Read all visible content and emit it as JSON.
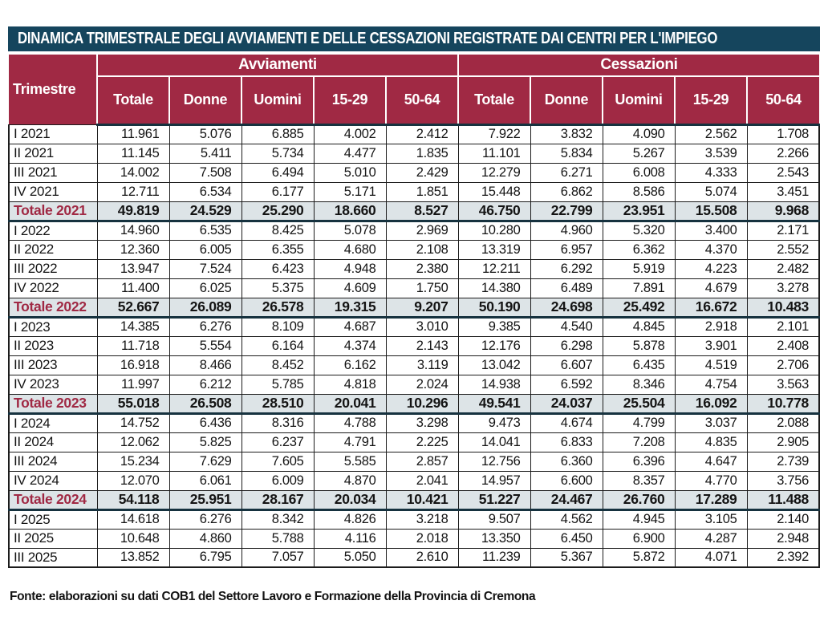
{
  "chart_data": {
    "type": "table",
    "title": "DINAMICA TRIMESTRALE DEGLI AVVIAMENTI E DELLE CESSAZIONI REGISTRATE DAI CENTRI PER L'IMPIEGO",
    "row_header": "Trimestre",
    "column_groups": [
      "Avviamenti",
      "Cessazioni"
    ],
    "sub_columns": [
      "Totale",
      "Donne",
      "Uomini",
      "15-29",
      "50-64"
    ],
    "rows": [
      {
        "label": "I 2021",
        "is_total": false,
        "values": [
          "11.961",
          "5.076",
          "6.885",
          "4.002",
          "2.412",
          "7.922",
          "3.832",
          "4.090",
          "2.562",
          "1.708"
        ]
      },
      {
        "label": "II 2021",
        "is_total": false,
        "values": [
          "11.145",
          "5.411",
          "5.734",
          "4.477",
          "1.835",
          "11.101",
          "5.834",
          "5.267",
          "3.539",
          "2.266"
        ]
      },
      {
        "label": "III 2021",
        "is_total": false,
        "values": [
          "14.002",
          "7.508",
          "6.494",
          "5.010",
          "2.429",
          "12.279",
          "6.271",
          "6.008",
          "4.333",
          "2.543"
        ]
      },
      {
        "label": "IV 2021",
        "is_total": false,
        "values": [
          "12.711",
          "6.534",
          "6.177",
          "5.171",
          "1.851",
          "15.448",
          "6.862",
          "8.586",
          "5.074",
          "3.451"
        ]
      },
      {
        "label": "Totale 2021",
        "is_total": true,
        "values": [
          "49.819",
          "24.529",
          "25.290",
          "18.660",
          "8.527",
          "46.750",
          "22.799",
          "23.951",
          "15.508",
          "9.968"
        ]
      },
      {
        "label": "I 2022",
        "is_total": false,
        "values": [
          "14.960",
          "6.535",
          "8.425",
          "5.078",
          "2.969",
          "10.280",
          "4.960",
          "5.320",
          "3.400",
          "2.171"
        ]
      },
      {
        "label": "II 2022",
        "is_total": false,
        "values": [
          "12.360",
          "6.005",
          "6.355",
          "4.680",
          "2.108",
          "13.319",
          "6.957",
          "6.362",
          "4.370",
          "2.552"
        ]
      },
      {
        "label": "III 2022",
        "is_total": false,
        "values": [
          "13.947",
          "7.524",
          "6.423",
          "4.948",
          "2.380",
          "12.211",
          "6.292",
          "5.919",
          "4.223",
          "2.482"
        ]
      },
      {
        "label": "IV 2022",
        "is_total": false,
        "values": [
          "11.400",
          "6.025",
          "5.375",
          "4.609",
          "1.750",
          "14.380",
          "6.489",
          "7.891",
          "4.679",
          "3.278"
        ]
      },
      {
        "label": "Totale 2022",
        "is_total": true,
        "values": [
          "52.667",
          "26.089",
          "26.578",
          "19.315",
          "9.207",
          "50.190",
          "24.698",
          "25.492",
          "16.672",
          "10.483"
        ]
      },
      {
        "label": "I 2023",
        "is_total": false,
        "values": [
          "14.385",
          "6.276",
          "8.109",
          "4.687",
          "3.010",
          "9.385",
          "4.540",
          "4.845",
          "2.918",
          "2.101"
        ]
      },
      {
        "label": "II 2023",
        "is_total": false,
        "values": [
          "11.718",
          "5.554",
          "6.164",
          "4.374",
          "2.143",
          "12.176",
          "6.298",
          "5.878",
          "3.901",
          "2.408"
        ]
      },
      {
        "label": "III 2023",
        "is_total": false,
        "values": [
          "16.918",
          "8.466",
          "8.452",
          "6.162",
          "3.119",
          "13.042",
          "6.607",
          "6.435",
          "4.519",
          "2.706"
        ]
      },
      {
        "label": "IV 2023",
        "is_total": false,
        "values": [
          "11.997",
          "6.212",
          "5.785",
          "4.818",
          "2.024",
          "14.938",
          "6.592",
          "8.346",
          "4.754",
          "3.563"
        ]
      },
      {
        "label": "Totale 2023",
        "is_total": true,
        "values": [
          "55.018",
          "26.508",
          "28.510",
          "20.041",
          "10.296",
          "49.541",
          "24.037",
          "25.504",
          "16.092",
          "10.778"
        ]
      },
      {
        "label": "I 2024",
        "is_total": false,
        "values": [
          "14.752",
          "6.436",
          "8.316",
          "4.788",
          "3.298",
          "9.473",
          "4.674",
          "4.799",
          "3.037",
          "2.088"
        ]
      },
      {
        "label": "II 2024",
        "is_total": false,
        "values": [
          "12.062",
          "5.825",
          "6.237",
          "4.791",
          "2.225",
          "14.041",
          "6.833",
          "7.208",
          "4.835",
          "2.905"
        ]
      },
      {
        "label": "III 2024",
        "is_total": false,
        "values": [
          "15.234",
          "7.629",
          "7.605",
          "5.585",
          "2.857",
          "12.756",
          "6.360",
          "6.396",
          "4.647",
          "2.739"
        ]
      },
      {
        "label": "IV 2024",
        "is_total": false,
        "values": [
          "12.070",
          "6.061",
          "6.009",
          "4.870",
          "2.041",
          "14.957",
          "6.600",
          "8.357",
          "4.770",
          "3.756"
        ]
      },
      {
        "label": "Totale 2024",
        "is_total": true,
        "values": [
          "54.118",
          "25.951",
          "28.167",
          "20.034",
          "10.421",
          "51.227",
          "24.467",
          "26.760",
          "17.289",
          "11.488"
        ]
      },
      {
        "label": "I 2025",
        "is_total": false,
        "values": [
          "14.618",
          "6.276",
          "8.342",
          "4.826",
          "3.218",
          "9.507",
          "4.562",
          "4.945",
          "3.105",
          "2.140"
        ]
      },
      {
        "label": "II 2025",
        "is_total": false,
        "values": [
          "10.648",
          "4.860",
          "5.788",
          "4.116",
          "2.018",
          "13.350",
          "6.450",
          "6.900",
          "4.287",
          "2.948"
        ]
      },
      {
        "label": "III 2025",
        "is_total": false,
        "values": [
          "13.852",
          "6.795",
          "7.057",
          "5.050",
          "2.610",
          "11.239",
          "5.367",
          "5.872",
          "4.071",
          "2.392"
        ]
      }
    ],
    "source": "Fonte: elaborazioni su dati COB1 del Settore Lavoro e Formazione della Provincia di Cremona"
  },
  "colors": {
    "title_bg": "#15455d",
    "header_bg": "#a02944",
    "total_row_bg": "#dde4e7",
    "total_label_color": "#a02944",
    "grid_line": "#1c1c1c",
    "thick_rule": "#16323f"
  }
}
